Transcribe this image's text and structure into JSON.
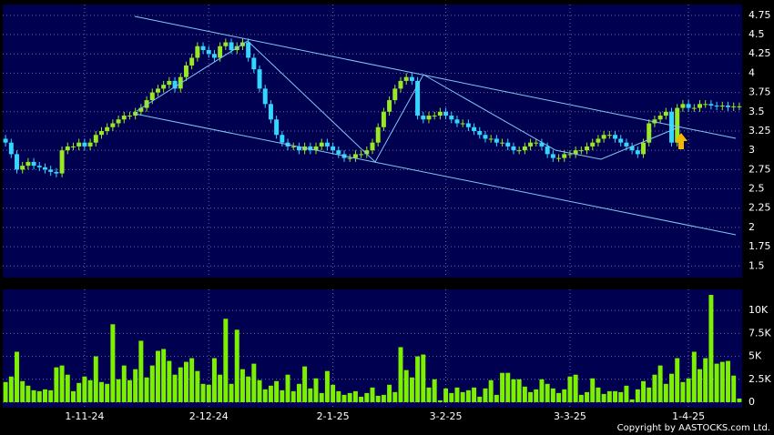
{
  "chart_data": [
    {
      "type": "candlestick",
      "up_color": "#99e824",
      "down_color": "#33d6ff",
      "ylim": [
        1.35,
        4.89
      ],
      "yticks": [
        1.5,
        1.75,
        2,
        2.25,
        2.5,
        2.75,
        3,
        3.25,
        3.5,
        3.75,
        4,
        4.25,
        4.5,
        4.75
      ],
      "grid": true,
      "open": [
        3.15,
        3.1,
        2.95,
        2.75,
        2.8,
        2.85,
        2.8,
        2.78,
        2.75,
        2.72,
        2.7,
        3.0,
        3.05,
        3.05,
        3.1,
        3.05,
        3.1,
        3.2,
        3.25,
        3.3,
        3.35,
        3.4,
        3.45,
        3.45,
        3.5,
        3.55,
        3.65,
        3.75,
        3.8,
        3.85,
        3.9,
        3.8,
        3.95,
        4.1,
        4.2,
        4.35,
        4.3,
        4.25,
        4.2,
        4.35,
        4.4,
        4.3,
        4.35,
        4.4,
        4.2,
        4.05,
        3.8,
        3.6,
        3.4,
        3.2,
        3.1,
        3.05,
        3.05,
        3.0,
        3.05,
        3.0,
        3.05,
        3.1,
        3.05,
        3.0,
        2.95,
        2.9,
        2.9,
        2.95,
        2.95,
        3.0,
        3.1,
        3.3,
        3.5,
        3.65,
        3.8,
        3.9,
        3.95,
        3.9,
        3.45,
        3.4,
        3.45,
        3.45,
        3.5,
        3.45,
        3.4,
        3.35,
        3.35,
        3.3,
        3.25,
        3.2,
        3.15,
        3.15,
        3.1,
        3.1,
        3.05,
        3.0,
        3.0,
        3.05,
        3.1,
        3.1,
        3.05,
        2.95,
        2.9,
        2.9,
        2.95,
        2.95,
        3.0,
        3.0,
        3.05,
        3.1,
        3.15,
        3.2,
        3.2,
        3.15,
        3.1,
        3.05,
        3.0,
        2.95,
        3.1,
        3.35,
        3.4,
        3.45,
        3.5,
        3.1,
        3.55,
        3.6,
        3.55,
        3.55,
        3.6,
        3.6,
        3.58,
        3.57,
        3.58,
        3.56,
        3.57
      ],
      "high": [
        3.2,
        3.15,
        3.0,
        2.85,
        2.9,
        2.9,
        2.85,
        2.83,
        2.8,
        2.77,
        3.05,
        3.1,
        3.1,
        3.15,
        3.15,
        3.15,
        3.25,
        3.3,
        3.35,
        3.4,
        3.45,
        3.5,
        3.5,
        3.55,
        3.6,
        3.7,
        3.8,
        3.85,
        3.9,
        3.95,
        3.95,
        4.0,
        4.15,
        4.25,
        4.4,
        4.4,
        4.35,
        4.3,
        4.4,
        4.45,
        4.45,
        4.4,
        4.45,
        4.45,
        4.25,
        4.1,
        3.85,
        3.65,
        3.45,
        3.25,
        3.15,
        3.1,
        3.1,
        3.1,
        3.1,
        3.1,
        3.15,
        3.15,
        3.1,
        3.05,
        3.0,
        2.95,
        3.0,
        3.0,
        3.05,
        3.15,
        3.35,
        3.55,
        3.7,
        3.85,
        3.95,
        4.0,
        4.0,
        3.95,
        3.5,
        3.5,
        3.5,
        3.55,
        3.55,
        3.5,
        3.45,
        3.4,
        3.4,
        3.35,
        3.3,
        3.25,
        3.2,
        3.2,
        3.15,
        3.15,
        3.1,
        3.05,
        3.1,
        3.15,
        3.15,
        3.15,
        3.1,
        3.0,
        2.95,
        3.0,
        3.0,
        3.05,
        3.05,
        3.1,
        3.15,
        3.2,
        3.25,
        3.25,
        3.25,
        3.2,
        3.15,
        3.1,
        3.05,
        3.15,
        3.4,
        3.45,
        3.5,
        3.55,
        3.55,
        3.6,
        3.65,
        3.65,
        3.6,
        3.65,
        3.65,
        3.65,
        3.63,
        3.63,
        3.63,
        3.62,
        3.62
      ],
      "low": [
        3.05,
        2.9,
        2.7,
        2.7,
        2.75,
        2.75,
        2.73,
        2.7,
        2.67,
        2.65,
        2.65,
        2.95,
        3.0,
        3.0,
        3.0,
        3.0,
        3.05,
        3.15,
        3.2,
        3.25,
        3.3,
        3.35,
        3.4,
        3.4,
        3.45,
        3.5,
        3.6,
        3.7,
        3.75,
        3.8,
        3.75,
        3.75,
        3.9,
        4.05,
        4.15,
        4.25,
        4.2,
        4.15,
        4.15,
        4.3,
        4.25,
        4.25,
        4.3,
        4.15,
        4.0,
        3.75,
        3.55,
        3.35,
        3.15,
        3.05,
        3.0,
        3.0,
        2.95,
        2.95,
        2.95,
        2.95,
        3.0,
        3.0,
        2.95,
        2.9,
        2.85,
        2.85,
        2.85,
        2.9,
        2.9,
        2.95,
        3.05,
        3.25,
        3.45,
        3.6,
        3.75,
        3.85,
        3.85,
        3.4,
        3.35,
        3.35,
        3.4,
        3.4,
        3.4,
        3.35,
        3.3,
        3.3,
        3.25,
        3.2,
        3.15,
        3.1,
        3.1,
        3.05,
        3.05,
        3.0,
        2.95,
        2.95,
        2.95,
        3.0,
        3.05,
        3.0,
        2.9,
        2.85,
        2.85,
        2.85,
        2.9,
        2.9,
        2.95,
        2.95,
        3.0,
        3.05,
        3.1,
        3.15,
        3.1,
        3.05,
        3.0,
        2.95,
        2.9,
        2.9,
        3.05,
        3.3,
        3.35,
        3.4,
        3.05,
        3.05,
        3.5,
        3.5,
        3.5,
        3.5,
        3.55,
        3.53,
        3.52,
        3.52,
        3.51,
        3.51,
        3.52
      ],
      "close": [
        3.1,
        2.95,
        2.75,
        2.8,
        2.85,
        2.8,
        2.78,
        2.75,
        2.72,
        2.7,
        3.0,
        3.05,
        3.05,
        3.1,
        3.05,
        3.1,
        3.2,
        3.25,
        3.3,
        3.35,
        3.4,
        3.45,
        3.45,
        3.5,
        3.55,
        3.65,
        3.75,
        3.8,
        3.85,
        3.9,
        3.8,
        3.95,
        4.1,
        4.2,
        4.35,
        4.3,
        4.25,
        4.2,
        4.35,
        4.4,
        4.3,
        4.35,
        4.4,
        4.2,
        4.05,
        3.8,
        3.6,
        3.4,
        3.2,
        3.1,
        3.05,
        3.05,
        3.0,
        3.05,
        3.0,
        3.05,
        3.1,
        3.05,
        3.0,
        2.95,
        2.9,
        2.9,
        2.95,
        2.95,
        3.0,
        3.1,
        3.3,
        3.5,
        3.65,
        3.8,
        3.9,
        3.95,
        3.9,
        3.45,
        3.4,
        3.45,
        3.45,
        3.5,
        3.45,
        3.4,
        3.35,
        3.35,
        3.3,
        3.25,
        3.2,
        3.15,
        3.15,
        3.1,
        3.1,
        3.05,
        3.0,
        3.0,
        3.05,
        3.1,
        3.1,
        3.05,
        2.95,
        2.9,
        2.9,
        2.95,
        2.95,
        3.0,
        3.0,
        3.05,
        3.1,
        3.15,
        3.2,
        3.2,
        3.15,
        3.1,
        3.05,
        3.0,
        2.95,
        3.1,
        3.35,
        3.4,
        3.45,
        3.5,
        3.1,
        3.55,
        3.6,
        3.55,
        3.55,
        3.6,
        3.6,
        3.58,
        3.57,
        3.58,
        3.56,
        3.57,
        3.57
      ]
    },
    {
      "type": "bar",
      "color": "#7cf000",
      "footer": "Copyright by AASTOCKS.com Ltd.",
      "ylim": [
        -600,
        12300
      ],
      "yticks": [
        0,
        {
          "value": 2500,
          "label": "2.5K"
        },
        {
          "value": 5000,
          "label": "5K"
        },
        {
          "value": 7500,
          "label": "7.5K"
        },
        {
          "value": 10000,
          "label": "10K"
        }
      ],
      "grid": true,
      "categories": [
        null,
        null,
        null,
        null,
        null,
        null,
        null,
        null,
        null,
        null,
        null,
        null,
        null,
        null,
        "1-11-24",
        null,
        null,
        null,
        null,
        null,
        null,
        null,
        null,
        null,
        null,
        null,
        null,
        null,
        null,
        null,
        null,
        null,
        null,
        null,
        null,
        null,
        "2-12-24",
        null,
        null,
        null,
        null,
        null,
        null,
        null,
        null,
        null,
        null,
        null,
        null,
        null,
        null,
        null,
        null,
        null,
        null,
        null,
        null,
        null,
        "2-1-25",
        null,
        null,
        null,
        null,
        null,
        null,
        null,
        null,
        null,
        null,
        null,
        null,
        null,
        null,
        null,
        null,
        null,
        null,
        null,
        "3-2-25",
        null,
        null,
        null,
        null,
        null,
        null,
        null,
        null,
        null,
        null,
        null,
        null,
        null,
        null,
        null,
        null,
        null,
        null,
        null,
        null,
        null,
        "3-3-25",
        null,
        null,
        null,
        null,
        null,
        null,
        null,
        null,
        null,
        null,
        null,
        null,
        null,
        null,
        null,
        null,
        null,
        null,
        null,
        null,
        "1-4-25",
        null,
        null,
        null,
        null,
        null,
        null,
        null,
        null,
        null
      ],
      "values": [
        2200,
        2800,
        5500,
        2300,
        1800,
        1300,
        1200,
        1400,
        1300,
        3800,
        4000,
        3000,
        1200,
        2100,
        2800,
        2400,
        5000,
        2200,
        2000,
        8500,
        2500,
        4000,
        2400,
        3600,
        6700,
        2700,
        4000,
        5600,
        5800,
        4500,
        3000,
        3800,
        4400,
        4800,
        3400,
        2000,
        1900,
        4800,
        3000,
        9100,
        2000,
        7900,
        3600,
        2800,
        4200,
        2400,
        1400,
        1800,
        2300,
        1300,
        3000,
        1200,
        2000,
        3900,
        1500,
        2600,
        1000,
        3400,
        1900,
        1200,
        800,
        1000,
        1200,
        600,
        1000,
        1600,
        700,
        800,
        1900,
        1100,
        6000,
        3500,
        2700,
        5000,
        5200,
        1600,
        2500,
        200,
        1500,
        1000,
        1600,
        1100,
        1300,
        1600,
        600,
        1500,
        2400,
        800,
        3200,
        3200,
        2500,
        2500,
        1700,
        1100,
        1400,
        2500,
        2000,
        1500,
        1000,
        1400,
        2800,
        3000,
        800,
        1100,
        2600,
        1600,
        900,
        1200,
        1200,
        1100,
        1800,
        300,
        1400,
        2300,
        1600,
        3000,
        4000,
        2000,
        3100,
        4800,
        2200,
        2600,
        5500,
        3600,
        4800,
        11700,
        4200,
        4400,
        4500,
        2900,
        400
      ]
    }
  ]
}
